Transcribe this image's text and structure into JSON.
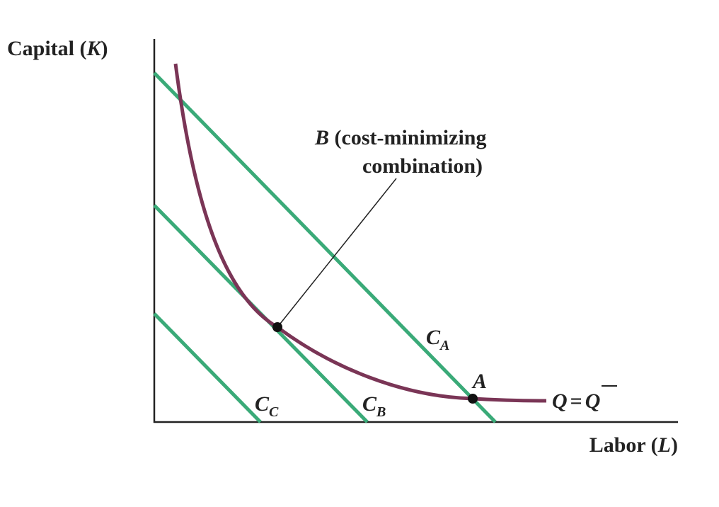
{
  "y_axis": {
    "label_parts": [
      "Capital (",
      "K",
      ")"
    ]
  },
  "x_axis": {
    "label_parts": [
      "Labor (",
      "L",
      ")"
    ]
  },
  "isocost_lines": [
    {
      "label_parts": [
        "C",
        "A"
      ]
    },
    {
      "label_parts": [
        "C",
        "B"
      ]
    },
    {
      "label_parts": [
        "C",
        "C"
      ]
    }
  ],
  "isoquant": {
    "label_parts": [
      "Q",
      "=",
      "Q"
    ]
  },
  "points": [
    {
      "label": "A"
    },
    {
      "annotation_parts": [
        "B",
        " (cost-minimizing",
        "combination)"
      ]
    }
  ]
}
